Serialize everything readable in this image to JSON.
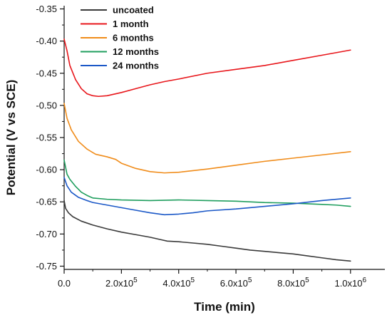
{
  "chart_data": {
    "type": "line",
    "title": "",
    "xlabel": "Time (min)",
    "ylabel": "Potential (V vs SCE)",
    "xlim": [
      0,
      1120000.0
    ],
    "ylim": [
      -0.755,
      -0.345
    ],
    "grid": false,
    "legend_position": "top-left",
    "x_ticks": [
      {
        "value": 0,
        "base": "0.0",
        "exp": ""
      },
      {
        "value": 200000,
        "base": "2.0x10",
        "exp": "5"
      },
      {
        "value": 400000,
        "base": "4.0x10",
        "exp": "5"
      },
      {
        "value": 600000,
        "base": "6.0x10",
        "exp": "5"
      },
      {
        "value": 800000,
        "base": "8.0x10",
        "exp": "5"
      },
      {
        "value": 1000000,
        "base": "1.0x10",
        "exp": "6"
      }
    ],
    "y_ticks": [
      {
        "value": -0.35,
        "label": "-0.35"
      },
      {
        "value": -0.4,
        "label": "-0.40"
      },
      {
        "value": -0.45,
        "label": "-0.45"
      },
      {
        "value": -0.5,
        "label": "-0.50"
      },
      {
        "value": -0.55,
        "label": "-0.55"
      },
      {
        "value": -0.6,
        "label": "-0.60"
      },
      {
        "value": -0.65,
        "label": "-0.65"
      },
      {
        "value": -0.7,
        "label": "-0.70"
      },
      {
        "value": -0.75,
        "label": "-0.75"
      }
    ],
    "series": [
      {
        "name": "uncoated",
        "color": "#3a3a3a",
        "x": [
          0,
          5000,
          15000,
          30000,
          60000,
          100000,
          150000,
          200000,
          250000,
          300000,
          340000,
          360000,
          400000,
          450000,
          500000,
          550000,
          600000,
          650000,
          700000,
          750000,
          800000,
          850000,
          900000,
          950000,
          1000000
        ],
        "y": [
          -0.648,
          -0.66,
          -0.667,
          -0.673,
          -0.68,
          -0.686,
          -0.692,
          -0.697,
          -0.701,
          -0.705,
          -0.709,
          -0.711,
          -0.712,
          -0.714,
          -0.716,
          -0.719,
          -0.722,
          -0.725,
          -0.727,
          -0.729,
          -0.731,
          -0.734,
          -0.737,
          -0.74,
          -0.742
        ]
      },
      {
        "name": "1 month",
        "color": "#e8161b",
        "x": [
          0,
          10000,
          20000,
          40000,
          60000,
          80000,
          100000,
          120000,
          150000,
          200000,
          250000,
          300000,
          350000,
          400000,
          500000,
          600000,
          700000,
          800000,
          900000,
          1000000
        ],
        "y": [
          -0.397,
          -0.415,
          -0.438,
          -0.46,
          -0.474,
          -0.482,
          -0.485,
          -0.486,
          -0.485,
          -0.48,
          -0.474,
          -0.468,
          -0.463,
          -0.459,
          -0.45,
          -0.444,
          -0.438,
          -0.43,
          -0.422,
          -0.414
        ]
      },
      {
        "name": "6 months",
        "color": "#f08c1a",
        "x": [
          0,
          10000,
          25000,
          50000,
          80000,
          110000,
          150000,
          180000,
          200000,
          250000,
          300000,
          350000,
          400000,
          500000,
          600000,
          700000,
          800000,
          900000,
          1000000
        ],
        "y": [
          -0.497,
          -0.52,
          -0.538,
          -0.556,
          -0.568,
          -0.576,
          -0.58,
          -0.584,
          -0.59,
          -0.598,
          -0.603,
          -0.605,
          -0.604,
          -0.599,
          -0.593,
          -0.587,
          -0.582,
          -0.577,
          -0.572
        ]
      },
      {
        "name": "12 months",
        "color": "#1f9e5e",
        "x": [
          0,
          10000,
          20000,
          40000,
          60000,
          80000,
          100000,
          150000,
          200000,
          300000,
          400000,
          500000,
          600000,
          700000,
          800000,
          850000,
          900000,
          950000,
          1000000
        ],
        "y": [
          -0.585,
          -0.607,
          -0.615,
          -0.626,
          -0.635,
          -0.64,
          -0.644,
          -0.646,
          -0.647,
          -0.648,
          -0.647,
          -0.648,
          -0.649,
          -0.651,
          -0.652,
          -0.653,
          -0.654,
          -0.655,
          -0.657
        ]
      },
      {
        "name": "24 months",
        "color": "#1b58c7",
        "x": [
          0,
          10000,
          25000,
          50000,
          80000,
          100000,
          150000,
          200000,
          250000,
          300000,
          350000,
          400000,
          450000,
          500000,
          600000,
          700000,
          800000,
          900000,
          1000000
        ],
        "y": [
          -0.612,
          -0.625,
          -0.635,
          -0.643,
          -0.648,
          -0.651,
          -0.655,
          -0.659,
          -0.663,
          -0.667,
          -0.67,
          -0.669,
          -0.667,
          -0.664,
          -0.661,
          -0.657,
          -0.653,
          -0.648,
          -0.644
        ]
      }
    ]
  }
}
